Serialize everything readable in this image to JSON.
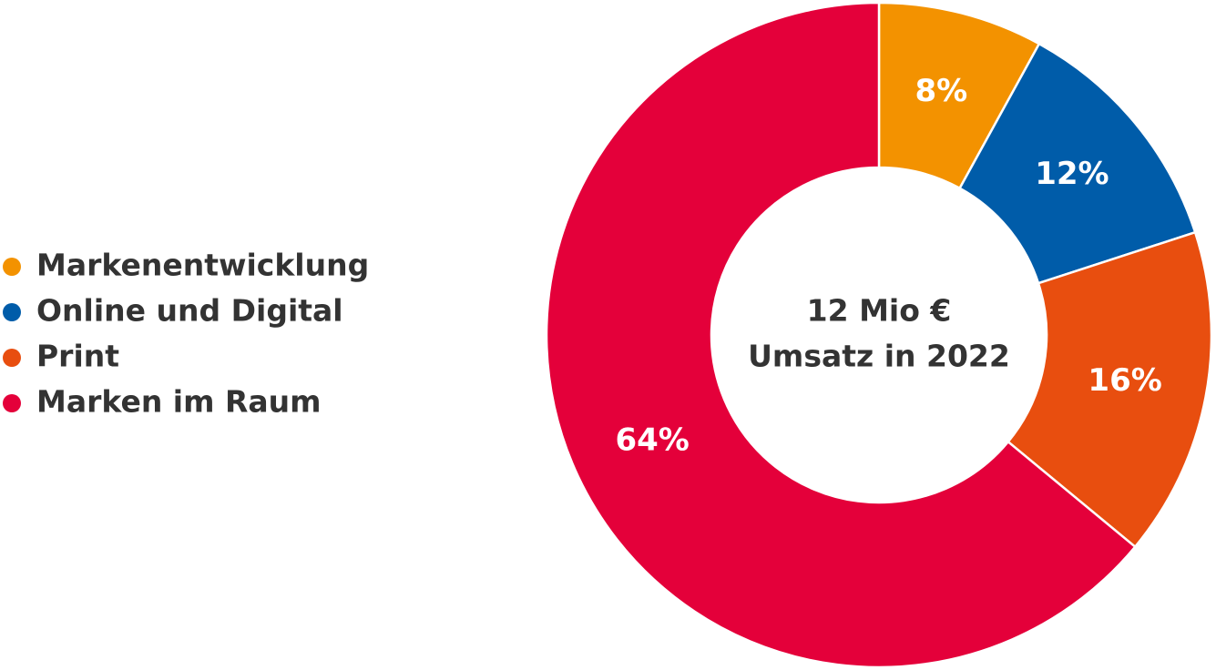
{
  "chart_data": {
    "type": "donut",
    "categories": [
      "Markenentwicklung",
      "Online und Digital",
      "Print",
      "Marken im Raum"
    ],
    "values": [
      8,
      12,
      16,
      64
    ],
    "value_labels": [
      "8%",
      "12%",
      "16%",
      "64%"
    ],
    "colors": [
      "#f39200",
      "#005ca9",
      "#e84e0f",
      "#e4003a"
    ],
    "center_text": [
      "12 Mio €",
      "Umsatz in 2022"
    ],
    "legend": "left"
  }
}
